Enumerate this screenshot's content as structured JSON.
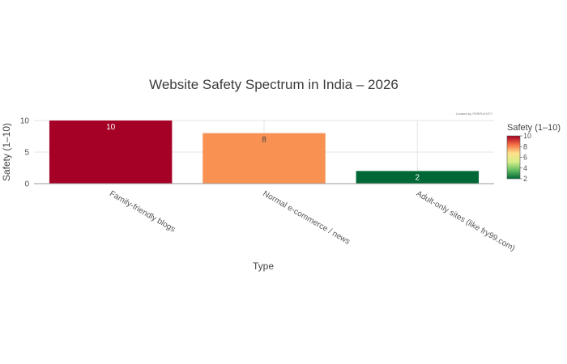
{
  "chart_data": {
    "type": "bar",
    "title": "Website Safety Spectrum in India – 2026",
    "xlabel": "Type",
    "ylabel": "Safety (1–10)",
    "categories": [
      "Family-friendly blogs",
      "Normal e-commerce / news",
      "Adult-only sites (like fry99.com)"
    ],
    "values": [
      10,
      8,
      2
    ],
    "data_labels": [
      "10",
      "8",
      "2"
    ],
    "bar_colors": [
      "#a50026",
      "#f99153",
      "#006837"
    ],
    "bar_label_colors": [
      "#ffffff",
      "#444444",
      "#ffffff"
    ],
    "ylim": [
      0,
      10
    ],
    "yticks": [
      0,
      5,
      10
    ],
    "ytick_labels": [
      "0",
      "5",
      "10"
    ],
    "grid": true,
    "legend": "none",
    "colorbar": {
      "title": "Safety (1–10)",
      "range": [
        2,
        10
      ],
      "ticks": [
        2,
        4,
        6,
        8,
        10
      ],
      "tick_labels": [
        "2",
        "4",
        "6",
        "8",
        "10"
      ],
      "colors": [
        "#006837",
        "#66bd63",
        "#d9ef8b",
        "#fee08b",
        "#f46d43",
        "#a50026"
      ],
      "placement": "right"
    },
    "credit": "Created by PERPLEXITY"
  }
}
